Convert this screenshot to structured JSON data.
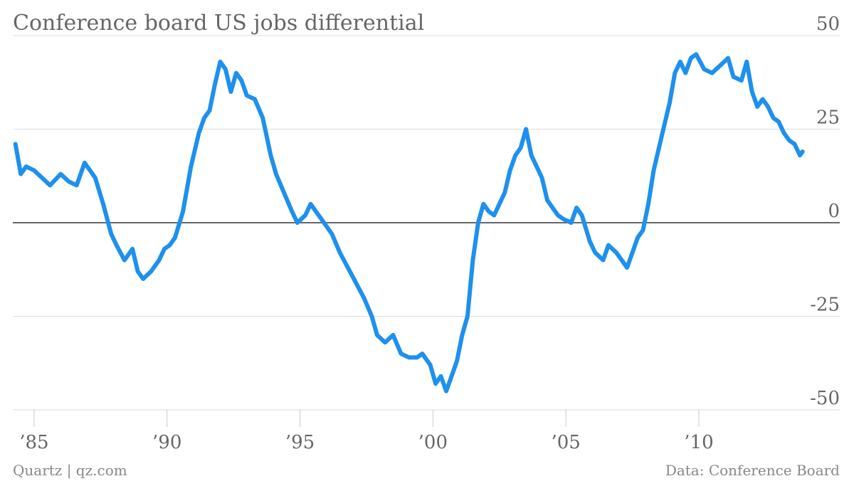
{
  "title": "Conference board US jobs differential",
  "footer": {
    "left": "Quartz | qz.com",
    "right": "Data: Conference Board"
  },
  "colors": {
    "series": "#1e90ee"
  },
  "chart_data": {
    "type": "line",
    "title": "Conference board US jobs differential",
    "xlabel": "",
    "ylabel": "",
    "xlim": [
      1984.2,
      2015.3
    ],
    "ylim": [
      -50,
      50
    ],
    "y_ticks": [
      50,
      25,
      0,
      -25,
      -50
    ],
    "y_tick_labels": [
      "50",
      "25",
      "0",
      "-25",
      "-50"
    ],
    "x_ticks": [
      1985,
      1990,
      1995,
      2000,
      2005,
      2010
    ],
    "x_tick_labels": [
      "’85",
      "’90",
      "’95",
      "’00",
      "’05",
      "’10"
    ],
    "grid": true,
    "legend": "none",
    "series": [
      {
        "x": [
          1984.3,
          1984.5,
          1984.7,
          1985.0,
          1985.3,
          1985.6,
          1986.0,
          1986.3,
          1986.6,
          1986.9,
          1987.1,
          1987.3,
          1987.6,
          1987.9,
          1988.1,
          1988.4,
          1988.7,
          1988.9,
          1989.1,
          1989.4,
          1989.7,
          1989.9,
          1990.1,
          1990.3,
          1990.6,
          1990.9,
          1991.2,
          1991.4,
          1991.6,
          1991.8,
          1992.0,
          1992.2,
          1992.4,
          1992.6,
          1992.8,
          1993.0,
          1993.3,
          1993.6,
          1993.9,
          1994.1,
          1994.4,
          1994.7,
          1994.9,
          1995.2,
          1995.4,
          1995.6,
          1995.9,
          1996.2,
          1996.5,
          1996.8,
          1997.1,
          1997.4,
          1997.7,
          1997.9,
          1998.2,
          1998.5,
          1998.8,
          1999.1,
          1999.4,
          1999.6,
          1999.9,
          2000.1,
          2000.3,
          2000.5,
          2000.7,
          2000.9,
          2001.1,
          2001.3,
          2001.5,
          2001.7,
          2001.9,
          2002.1,
          2002.3,
          2002.5,
          2002.7,
          2002.9,
          2003.1,
          2003.3,
          2003.5,
          2003.7,
          2003.9,
          2004.1,
          2004.3,
          2004.5,
          2004.7,
          2004.9,
          2005.2,
          2005.4,
          2005.6,
          2005.9,
          2006.1,
          2006.4,
          2006.6,
          2006.9,
          2007.1,
          2007.3,
          2007.5,
          2007.7,
          2007.9,
          2008.1,
          2008.3,
          2008.5,
          2008.7,
          2008.9,
          2009.1,
          2009.3,
          2009.5,
          2009.7,
          2009.9,
          2010.2,
          2010.5,
          2010.8,
          2011.1,
          2011.3,
          2011.6,
          2011.8,
          2012.0,
          2012.2,
          2012.4,
          2012.6,
          2012.8,
          2013.0,
          2013.2,
          2013.4,
          2013.6,
          2013.8,
          2013.9
        ],
        "y": [
          21,
          13,
          15,
          14,
          12,
          10,
          13,
          11,
          10,
          16,
          14,
          12,
          5,
          -3,
          -6,
          -10,
          -7,
          -13,
          -15,
          -13,
          -10,
          -7,
          -6,
          -4,
          3,
          15,
          24,
          28,
          30,
          37,
          43,
          41,
          35,
          40,
          38,
          34,
          33,
          28,
          18,
          13,
          8,
          3,
          0,
          2,
          5,
          3,
          0,
          -3,
          -8,
          -12,
          -16,
          -20,
          -25,
          -30,
          -32,
          -30,
          -35,
          -36,
          -36,
          -35,
          -38,
          -43,
          -41,
          -45,
          -41,
          -37,
          -30,
          -25,
          -10,
          0,
          5,
          3,
          2,
          5,
          8,
          14,
          18,
          20,
          25,
          18,
          15,
          12,
          6,
          4,
          2,
          1,
          0,
          4,
          2,
          -5,
          -8,
          -10,
          -6,
          -8,
          -10,
          -12,
          -8,
          -4,
          -2,
          5,
          14,
          20,
          26,
          32,
          40,
          43,
          40,
          44,
          45,
          41,
          40,
          42,
          44,
          39,
          38,
          43,
          35,
          31,
          33,
          31,
          28,
          27,
          24,
          22,
          21,
          18,
          19
        ]
      }
    ]
  }
}
